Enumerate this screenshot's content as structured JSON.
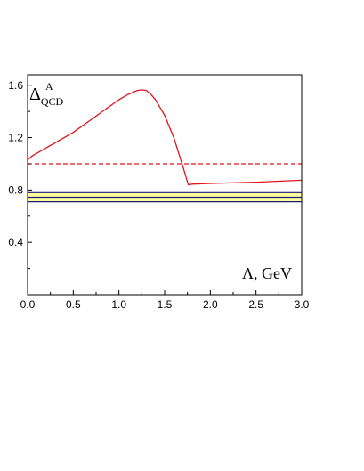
{
  "chart_data": {
    "type": "line",
    "title": "",
    "xlabel": "Λ, GeV",
    "ylabel_main": "Δ",
    "ylabel_sup": "A",
    "ylabel_sub": "QCD",
    "xlim": [
      0.0,
      3.0
    ],
    "ylim": [
      0.0,
      1.68
    ],
    "xticks": [
      "0.0",
      "0.5",
      "1.0",
      "1.5",
      "2.0",
      "2.5",
      "3.0"
    ],
    "xtick_values": [
      0.0,
      0.5,
      1.0,
      1.5,
      2.0,
      2.5,
      3.0
    ],
    "yticks": [
      "0.4",
      "0.8",
      "1.2",
      "1.6"
    ],
    "ytick_values": [
      0.4,
      0.8,
      1.2,
      1.6
    ],
    "grid": false,
    "series": [
      {
        "style": "solid",
        "color": "#e0151b",
        "x": [
          0.0,
          0.05,
          0.1,
          0.2,
          0.3,
          0.4,
          0.5,
          0.6,
          0.7,
          0.8,
          0.9,
          1.0,
          1.1,
          1.2,
          1.25,
          1.3,
          1.35,
          1.4,
          1.5,
          1.6,
          1.7,
          1.75,
          1.76,
          1.8,
          2.0,
          2.5,
          3.0
        ],
        "y": [
          1.03,
          1.06,
          1.08,
          1.12,
          1.16,
          1.2,
          1.24,
          1.29,
          1.34,
          1.39,
          1.44,
          1.49,
          1.53,
          1.56,
          1.565,
          1.56,
          1.53,
          1.49,
          1.37,
          1.2,
          0.98,
          0.86,
          0.84,
          0.845,
          0.85,
          0.86,
          0.875
        ]
      },
      {
        "style": "dashed",
        "color": "#e0151b",
        "x": [
          0.0,
          3.0
        ],
        "y": [
          1.0,
          1.0
        ]
      }
    ],
    "band": {
      "fill": "#ffff99",
      "edge_color": "#1a1a7a",
      "y_low": 0.71,
      "y_high": 0.78,
      "center": 0.745,
      "x": [
        0.0,
        3.0
      ]
    }
  }
}
